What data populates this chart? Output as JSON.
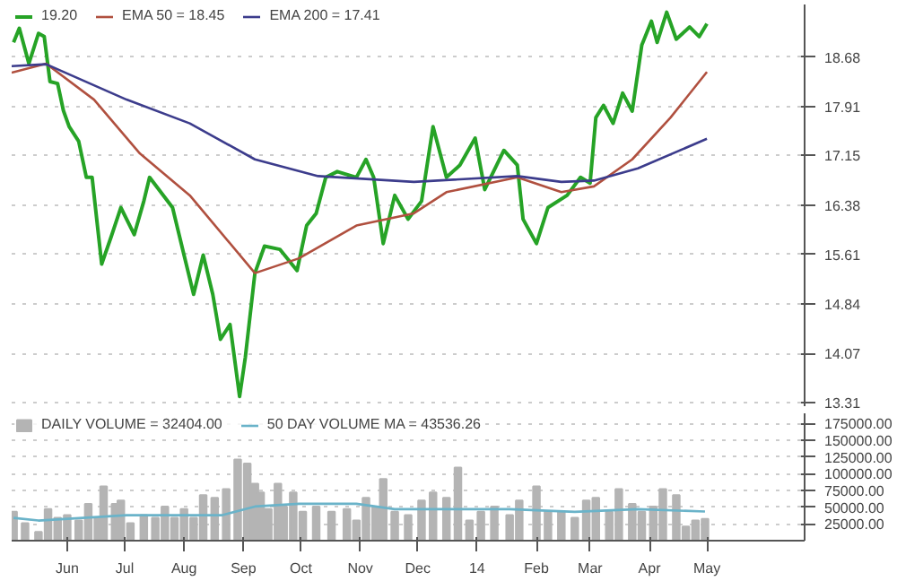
{
  "chart_data": [
    {
      "type": "line",
      "legend": "top left",
      "grid": "y",
      "tick_labels": "y",
      "xlim": [
        "2013-05-03",
        "2014-06-21"
      ],
      "ylim": [
        13.25,
        19.5
      ],
      "yticks": [
        13.31,
        14.07,
        14.84,
        15.61,
        16.38,
        17.15,
        17.91,
        18.68
      ],
      "series": [
        {
          "name": "19.20",
          "color": "#26a326",
          "x": [
            "2013-05-04",
            "2013-05-07",
            "2013-05-12",
            "2013-05-17",
            "2013-05-20",
            "2013-05-23",
            "2013-05-27",
            "2013-05-30",
            "2013-06-02",
            "2013-06-07",
            "2013-06-11",
            "2013-06-14",
            "2013-06-19",
            "2013-06-24",
            "2013-06-29",
            "2013-07-06",
            "2013-07-11",
            "2013-07-14",
            "2013-07-26",
            "2013-08-01",
            "2013-08-06",
            "2013-08-11",
            "2013-08-16",
            "2013-08-20",
            "2013-08-25",
            "2013-08-30",
            "2013-09-02",
            "2013-09-07",
            "2013-09-12",
            "2013-09-20",
            "2013-09-29",
            "2013-10-04",
            "2013-10-09",
            "2013-10-14",
            "2013-10-20",
            "2013-10-30",
            "2013-11-04",
            "2013-11-08",
            "2013-11-13",
            "2013-11-19",
            "2013-11-26",
            "2013-12-03",
            "2013-12-09",
            "2013-12-16",
            "2013-12-23",
            "2013-12-31",
            "2014-01-05",
            "2014-01-15",
            "2014-01-22",
            "2014-01-25",
            "2014-02-01",
            "2014-02-07",
            "2014-02-17",
            "2014-02-24",
            "2014-03-01",
            "2014-03-04",
            "2014-03-08",
            "2014-03-13",
            "2014-03-18",
            "2014-03-23",
            "2014-03-28",
            "2014-04-02",
            "2014-04-05",
            "2014-04-10",
            "2014-04-15",
            "2014-04-22",
            "2014-04-27",
            "2014-05-01"
          ],
          "values": [
            18.91,
            19.13,
            18.58,
            19.05,
            19.0,
            18.3,
            18.27,
            17.85,
            17.6,
            17.37,
            16.81,
            16.81,
            15.46,
            15.89,
            16.34,
            15.92,
            16.44,
            16.81,
            16.34,
            15.6,
            14.99,
            15.6,
            14.99,
            14.29,
            14.52,
            13.4,
            14.01,
            15.32,
            15.74,
            15.69,
            15.36,
            16.06,
            16.25,
            16.81,
            16.9,
            16.81,
            17.09,
            16.81,
            15.78,
            16.53,
            16.16,
            16.44,
            17.6,
            16.81,
            17.0,
            17.42,
            16.62,
            17.23,
            17.0,
            16.16,
            15.78,
            16.34,
            16.53,
            16.81,
            16.72,
            17.74,
            17.93,
            17.65,
            18.12,
            17.84,
            18.87,
            19.24,
            18.91,
            19.38,
            18.96,
            19.15,
            19.0,
            19.2
          ]
        },
        {
          "name": "EMA 50 = 18.45",
          "color": "#b0503f",
          "x": [
            "2013-05-03",
            "2013-05-21",
            "2013-06-15",
            "2013-07-09",
            "2013-08-04",
            "2013-09-07",
            "2013-09-30",
            "2013-10-30",
            "2013-11-29",
            "2013-12-16",
            "2014-01-22",
            "2014-02-14",
            "2014-03-03",
            "2014-03-23",
            "2014-04-12",
            "2014-05-01"
          ],
          "values": [
            18.44,
            18.58,
            18.02,
            17.18,
            16.53,
            15.32,
            15.55,
            16.06,
            16.25,
            16.58,
            16.81,
            16.58,
            16.67,
            17.09,
            17.74,
            18.45
          ]
        },
        {
          "name": "EMA 200 = 17.41",
          "color": "#3c3c8c",
          "x": [
            "2013-05-03",
            "2013-05-21",
            "2013-07-02",
            "2013-08-04",
            "2013-09-07",
            "2013-10-10",
            "2013-11-29",
            "2014-01-22",
            "2014-02-14",
            "2014-03-03",
            "2014-03-26",
            "2014-05-01"
          ],
          "values": [
            18.54,
            18.57,
            18.02,
            17.65,
            17.09,
            16.83,
            16.74,
            16.83,
            16.74,
            16.76,
            16.95,
            17.41
          ]
        }
      ]
    },
    {
      "type": "bar",
      "legend": "top left",
      "grid": "y",
      "xlim": [
        "2013-05-03",
        "2014-06-21"
      ],
      "ylim": [
        0,
        190000
      ],
      "yticks": [
        {
          "value": 25000,
          "label": "25000.00"
        },
        {
          "value": 50000,
          "label": "50000.00"
        },
        {
          "value": 75000,
          "label": "75000.00"
        },
        {
          "value": 100000,
          "label": "100000.00"
        },
        {
          "value": 125000,
          "label": "125000.00"
        },
        {
          "value": 150000,
          "label": "150000.00"
        },
        {
          "value": 175000,
          "label": "175000.00"
        }
      ],
      "xticks": [
        {
          "value": "2013-06-01",
          "label": "Jun"
        },
        {
          "value": "2013-07-01",
          "label": "Jul"
        },
        {
          "value": "2013-08-01",
          "label": "Aug"
        },
        {
          "value": "2013-09-01",
          "label": "Sep"
        },
        {
          "value": "2013-10-01",
          "label": "Oct"
        },
        {
          "value": "2013-11-01",
          "label": "Nov"
        },
        {
          "value": "2013-12-01",
          "label": "Dec"
        },
        {
          "value": "2014-01-01",
          "label": "14"
        },
        {
          "value": "2014-02-01",
          "label": "Feb"
        },
        {
          "value": "2014-03-01",
          "label": "Mar"
        },
        {
          "value": "2014-04-01",
          "label": "Apr"
        },
        {
          "value": "2014-05-01",
          "label": "May"
        }
      ],
      "series": [
        {
          "name": "DAILY VOLUME = 32404.00",
          "color": "#b4b4b4",
          "type": "bar",
          "x": [
            "2013-05-04",
            "2013-05-10",
            "2013-05-17",
            "2013-05-22",
            "2013-05-27",
            "2013-06-01",
            "2013-06-07",
            "2013-06-12",
            "2013-06-17",
            "2013-06-20",
            "2013-06-26",
            "2013-06-29",
            "2013-07-04",
            "2013-07-11",
            "2013-07-17",
            "2013-07-22",
            "2013-07-27",
            "2013-08-01",
            "2013-08-06",
            "2013-08-11",
            "2013-08-17",
            "2013-08-23",
            "2013-08-29",
            "2013-09-03",
            "2013-09-07",
            "2013-09-10",
            "2013-09-14",
            "2013-09-19",
            "2013-09-22",
            "2013-09-27",
            "2013-10-02",
            "2013-10-09",
            "2013-10-17",
            "2013-10-25",
            "2013-10-30",
            "2013-11-04",
            "2013-11-09",
            "2013-11-13",
            "2013-11-19",
            "2013-11-26",
            "2013-12-03",
            "2013-12-09",
            "2013-12-16",
            "2013-12-22",
            "2013-12-28",
            "2014-01-03",
            "2014-01-10",
            "2014-01-18",
            "2014-01-23",
            "2014-02-01",
            "2014-02-07",
            "2014-02-14",
            "2014-02-21",
            "2014-02-27",
            "2014-03-04",
            "2014-03-11",
            "2014-03-16",
            "2014-03-23",
            "2014-03-28",
            "2014-04-03",
            "2014-04-08",
            "2014-04-15",
            "2014-04-20",
            "2014-04-25",
            "2014-04-30"
          ],
          "values": [
            43000,
            26000,
            13000,
            47000,
            34000,
            38000,
            30000,
            55000,
            34000,
            81000,
            55000,
            60000,
            26000,
            38000,
            34000,
            51000,
            34000,
            47000,
            34000,
            68000,
            64000,
            77000,
            121000,
            115000,
            85000,
            72000,
            47000,
            85000,
            51000,
            72000,
            43000,
            51000,
            43000,
            47000,
            30000,
            64000,
            51000,
            92000,
            43000,
            38000,
            60000,
            72000,
            64000,
            109000,
            30000,
            43000,
            51000,
            38000,
            60000,
            81000,
            43000,
            43000,
            34000,
            60000,
            64000,
            43000,
            77000,
            55000,
            43000,
            51000,
            77000,
            68000,
            21000,
            30000,
            32404
          ]
        },
        {
          "name": "50 DAY VOLUME MA = 43536.26",
          "color": "#6ab3c9",
          "type": "line",
          "x": [
            "2013-05-04",
            "2013-05-17",
            "2013-07-02",
            "2013-08-21",
            "2013-09-07",
            "2013-09-30",
            "2013-10-30",
            "2013-11-19",
            "2014-01-18",
            "2014-02-21",
            "2014-03-26",
            "2014-04-30"
          ],
          "values": [
            34000,
            30000,
            38000,
            38000,
            51000,
            55000,
            55000,
            47000,
            47000,
            43000,
            47000,
            43536.26
          ]
        }
      ]
    }
  ]
}
